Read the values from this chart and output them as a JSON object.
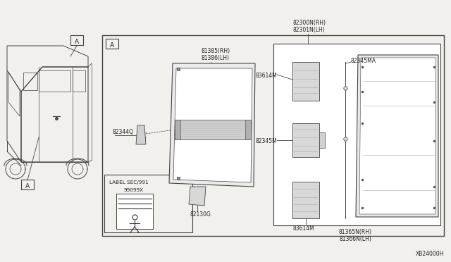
{
  "bg_color": "#f2f0ec",
  "line_color": "#444444",
  "diagram_id": "XB24000H",
  "labels": {
    "82300N_RH": "82300N(RH)",
    "82301N_LH": "82301N(LH)",
    "81385_RH": "81385(RH)",
    "81386_LH": "81386(LH)",
    "82344Q": "82344Q",
    "82130G": "82130G",
    "83614M_top": "83614M",
    "82345MA": "82345MA",
    "82345M": "82345M",
    "83614M_bot": "83614M",
    "81365N_RH": "81365N(RH)",
    "81366N_LH": "81366N(LH)",
    "label_sec": "LABEL SEC/991",
    "label_num": "99099X",
    "callout_A": "A"
  }
}
